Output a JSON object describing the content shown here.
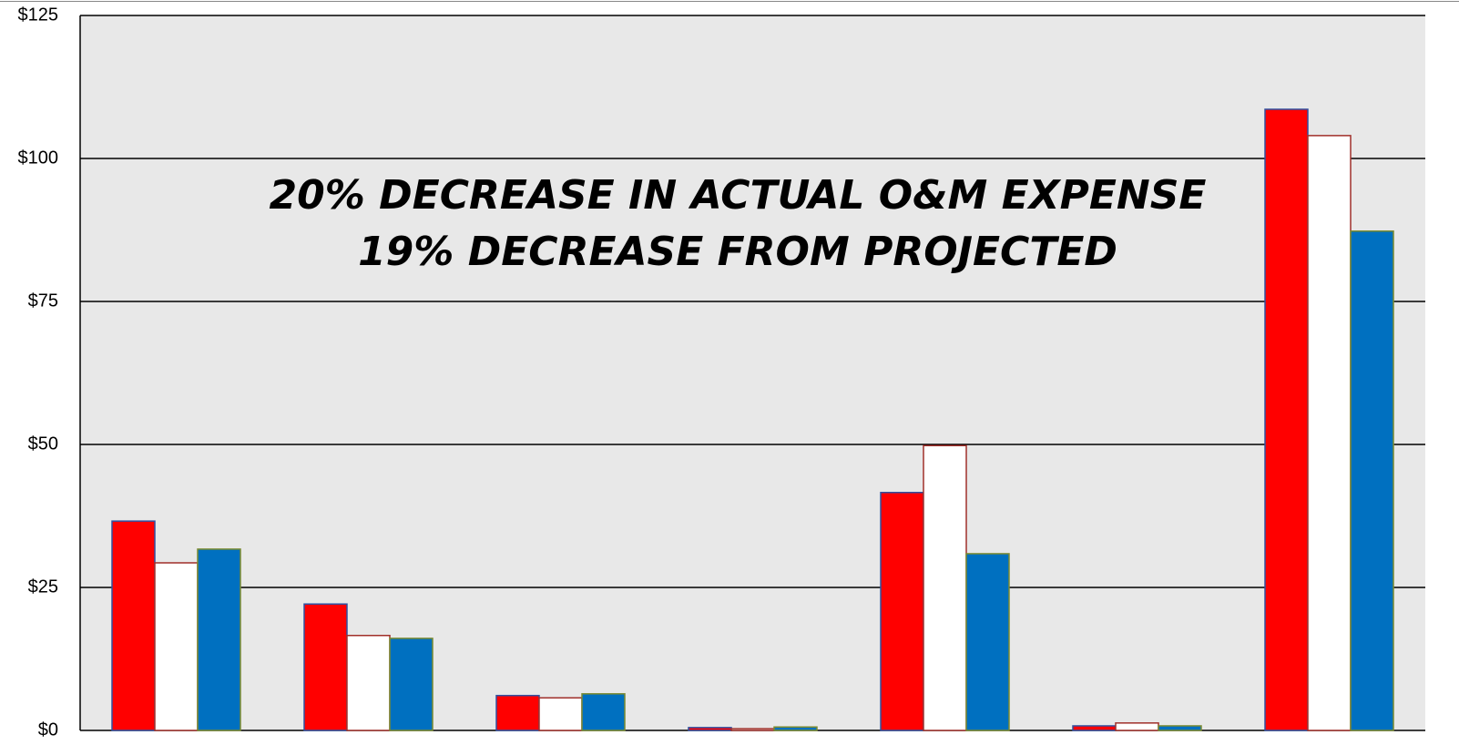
{
  "chart_data": {
    "type": "bar",
    "annotations": [
      "20% DECREASE IN ACTUAL O&M EXPENSE",
      "19% DECREASE FROM PROJECTED"
    ],
    "categories": [
      null,
      null,
      null,
      null,
      null,
      null,
      null
    ],
    "series": [
      {
        "color": "#ff0000",
        "edgecolor": "#3050a0",
        "values": [
          36.6,
          22.1,
          6.1,
          0.5,
          41.6,
          0.8,
          108.6
        ]
      },
      {
        "color": "#ffffff",
        "edgecolor": "#a0302a",
        "values": [
          29.3,
          16.6,
          5.7,
          0.3,
          49.8,
          1.3,
          104.0
        ]
      },
      {
        "color": "#0070c0",
        "edgecolor": "#7a8a30",
        "values": [
          31.7,
          16.1,
          6.4,
          0.6,
          30.9,
          0.8,
          87.3
        ]
      }
    ],
    "ylim": [
      0,
      125
    ],
    "yticks": [
      {
        "value": 0,
        "label": "$0"
      },
      {
        "value": 25,
        "label": "$25"
      },
      {
        "value": 50,
        "label": "$50"
      },
      {
        "value": 75,
        "label": "$75"
      },
      {
        "value": 100,
        "label": "$100"
      },
      {
        "value": 125,
        "label": "$125"
      }
    ],
    "grid": true,
    "background": "#e8e8e8"
  }
}
